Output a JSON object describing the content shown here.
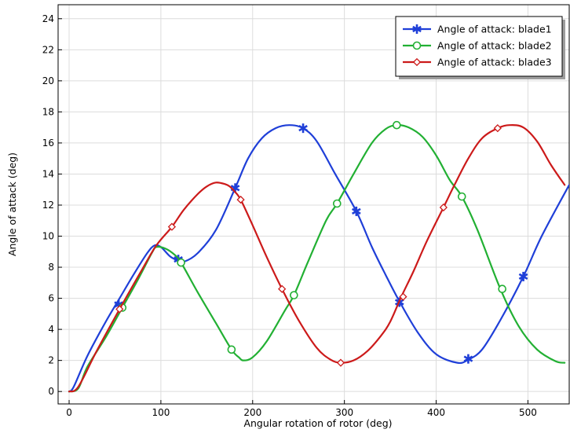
{
  "chart_data": {
    "type": "line",
    "xlabel": "Angular rotation of rotor (deg)",
    "ylabel": "Angle of attack (deg)",
    "xlim": [
      -12,
      545
    ],
    "ylim": [
      -0.8,
      24.9
    ],
    "xticks": [
      0,
      100,
      200,
      300,
      400,
      500
    ],
    "yticks": [
      0,
      2,
      4,
      6,
      8,
      10,
      12,
      14,
      16,
      18,
      20,
      22,
      24
    ],
    "grid": true,
    "legend_position": "top-right",
    "series": [
      {
        "name": "Angle of attack: blade1",
        "color": "#1f3fd8",
        "marker": "asterisk",
        "x": [
          0,
          5,
          20,
          40,
          55,
          70,
          85,
          93,
          100,
          110,
          118,
          125,
          140,
          160,
          181,
          195,
          210,
          225,
          240,
          255,
          270,
          290,
          313,
          330,
          345,
          360,
          380,
          400,
          423,
          435,
          450,
          470,
          495,
          515,
          545
        ],
        "y": [
          0,
          0.3,
          2.3,
          4.5,
          6.0,
          7.5,
          8.9,
          9.4,
          9.3,
          8.7,
          8.45,
          8.35,
          8.9,
          10.4,
          13.1,
          15.0,
          16.3,
          16.95,
          17.15,
          16.95,
          16.1,
          14.0,
          11.6,
          9.3,
          7.5,
          5.8,
          3.8,
          2.4,
          1.85,
          2.05,
          2.7,
          4.6,
          7.4,
          10.0,
          13.3
        ],
        "marker_points": [
          [
            54,
            5.6
          ],
          [
            119,
            8.5
          ],
          [
            181,
            13.1
          ],
          [
            255,
            16.95
          ],
          [
            313,
            11.6
          ],
          [
            360,
            5.75
          ],
          [
            435,
            2.1
          ],
          [
            495,
            7.4
          ]
        ]
      },
      {
        "name": "Angle of attack: blade2",
        "color": "#22b033",
        "marker": "circle",
        "x": [
          0,
          10,
          20,
          40,
          58,
          75,
          90,
          95,
          105,
          115,
          122,
          140,
          160,
          177,
          185,
          190,
          200,
          215,
          235,
          245,
          260,
          280,
          292,
          310,
          330,
          345,
          357,
          370,
          385,
          400,
          415,
          428,
          445,
          470,
          490,
          510,
          530,
          540
        ],
        "y": [
          0,
          0.2,
          1.6,
          3.5,
          5.4,
          7.2,
          8.9,
          9.3,
          9.2,
          8.8,
          8.3,
          6.4,
          4.4,
          2.7,
          2.2,
          2.0,
          2.2,
          3.2,
          5.2,
          6.2,
          8.3,
          11.0,
          12.1,
          14.0,
          16.0,
          16.9,
          17.15,
          17.0,
          16.4,
          15.2,
          13.6,
          12.55,
          10.4,
          6.6,
          4.2,
          2.7,
          1.95,
          1.85
        ],
        "marker_points": [
          [
            58,
            5.4
          ],
          [
            122,
            8.3
          ],
          [
            177,
            2.7
          ],
          [
            245,
            6.2
          ],
          [
            292,
            12.1
          ],
          [
            357,
            17.15
          ],
          [
            428,
            12.55
          ],
          [
            472,
            6.6
          ]
        ]
      },
      {
        "name": "Angle of attack: blade3",
        "color": "#cc1a1a",
        "marker": "diamond",
        "x": [
          0,
          10,
          30,
          55,
          80,
          95,
          112,
          125,
          140,
          150,
          160,
          170,
          175,
          180,
          187,
          200,
          215,
          232,
          250,
          270,
          285,
          296,
          310,
          325,
          340,
          350,
          362,
          375,
          390,
          408,
          420,
          435,
          450,
          467,
          480,
          495,
          510,
          525,
          540
        ],
        "y": [
          0,
          0.3,
          2.6,
          5.3,
          7.9,
          9.4,
          10.6,
          11.7,
          12.7,
          13.2,
          13.45,
          13.35,
          13.2,
          12.9,
          12.35,
          10.7,
          8.7,
          6.6,
          4.6,
          2.8,
          2.05,
          1.85,
          2.0,
          2.6,
          3.6,
          4.5,
          6.1,
          7.7,
          9.7,
          11.85,
          13.3,
          15.0,
          16.3,
          16.95,
          17.15,
          17.0,
          16.1,
          14.6,
          13.3
        ],
        "marker_points": [
          [
            55,
            5.3
          ],
          [
            112,
            10.6
          ],
          [
            187,
            12.35
          ],
          [
            232,
            6.6
          ],
          [
            296,
            1.85
          ],
          [
            364,
            6.1
          ],
          [
            408,
            11.85
          ],
          [
            467,
            16.95
          ]
        ]
      }
    ]
  }
}
